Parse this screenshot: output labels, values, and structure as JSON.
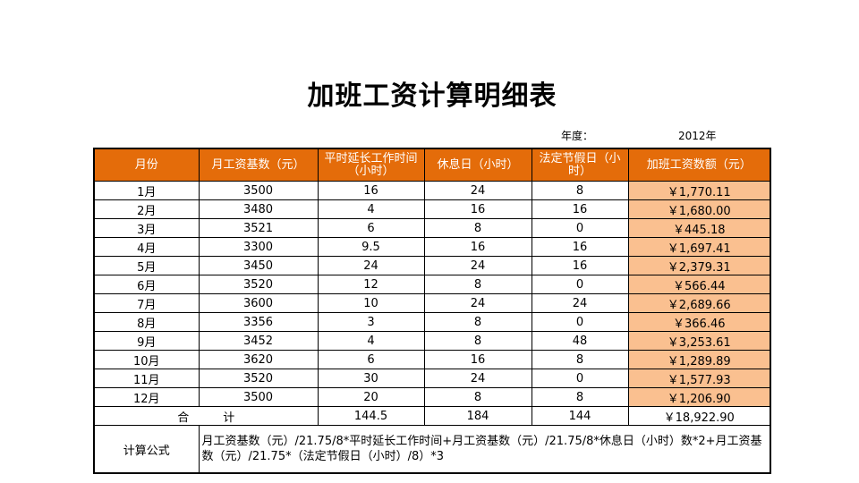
{
  "title": "加班工资计算明细表",
  "year_label": "年度：",
  "year_value": "2012年",
  "headers": [
    "月份",
    "月工资基数（元）",
    "平时延长工作时间（小时）",
    "休息日（小时）",
    "法定节假日（小时）",
    "加班工资数额（元）"
  ],
  "rows": [
    [
      "1月",
      "3500",
      "16",
      "24",
      "8",
      "￥1,770.11"
    ],
    [
      "2月",
      "3480",
      "4",
      "16",
      "16",
      "￥1,680.00"
    ],
    [
      "3月",
      "3521",
      "6",
      "8",
      "0",
      "￥445.18"
    ],
    [
      "4月",
      "3300",
      "9.5",
      "16",
      "16",
      "￥1,697.41"
    ],
    [
      "5月",
      "3450",
      "24",
      "24",
      "16",
      "￥2,379.31"
    ],
    [
      "6月",
      "3520",
      "12",
      "8",
      "0",
      "￥566.44"
    ],
    [
      "7月",
      "3600",
      "10",
      "24",
      "24",
      "￥2,689.66"
    ],
    [
      "8月",
      "3356",
      "3",
      "8",
      "0",
      "￥366.46"
    ],
    [
      "9月",
      "3452",
      "4",
      "8",
      "48",
      "￥3,253.61"
    ],
    [
      "10月",
      "3620",
      "6",
      "16",
      "8",
      "￥1,289.89"
    ],
    [
      "11月",
      "3520",
      "30",
      "24",
      "0",
      "￥1,577.93"
    ],
    [
      "12月",
      "3500",
      "20",
      "8",
      "8",
      "￥1,206.90"
    ]
  ],
  "total": {
    "label": "合计",
    "overtime_hours": "144.5",
    "rest_day_hours": "184",
    "holiday_hours": "144",
    "amount": "￥18,922.90"
  },
  "formula": {
    "label": "计算公式",
    "text": "月工资基数（元）/21.75/8*平时延长工作时间+月工资基数（元）/21.75/8*休息日（小时）数*2+月工资基数（元）/21.75*（法定节假日（小时）/8）*3"
  },
  "colors": {
    "header_bg": "#e46c0a",
    "amount_bg": "#fac090"
  }
}
